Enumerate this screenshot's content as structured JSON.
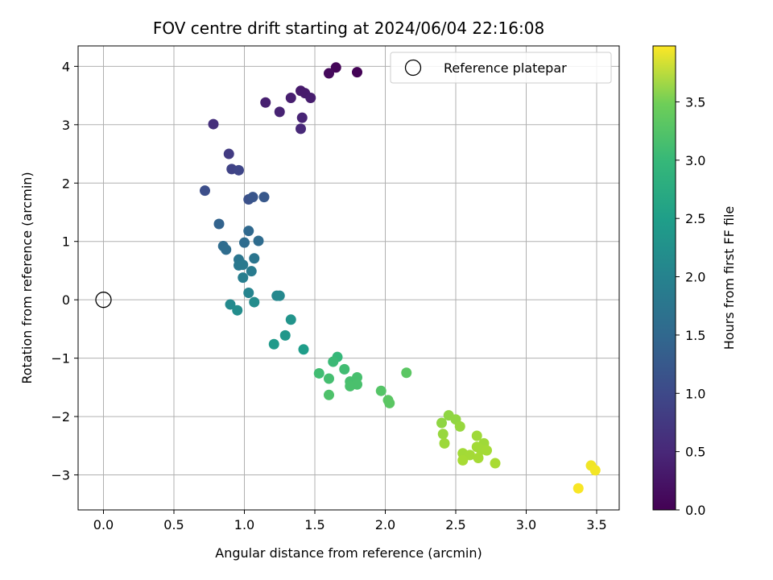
{
  "chart_data": {
    "type": "scatter",
    "title": "FOV centre drift starting at 2024/06/04 22:16:08",
    "xlabel": "Angular distance from reference (arcmin)",
    "ylabel": "Rotation from reference (arcmin)",
    "xlim": [
      -0.18,
      3.66
    ],
    "ylim": [
      -3.6,
      4.35
    ],
    "xticks": [
      0.0,
      0.5,
      1.0,
      1.5,
      2.0,
      2.5,
      3.0,
      3.5
    ],
    "yticks": [
      -3,
      -2,
      -1,
      0,
      1,
      2,
      3,
      4
    ],
    "xtick_labels": [
      "0.0",
      "0.5",
      "1.0",
      "1.5",
      "2.0",
      "2.5",
      "3.0",
      "3.5"
    ],
    "ytick_labels": [
      "−3",
      "−2",
      "−1",
      "0",
      "1",
      "2",
      "3",
      "4"
    ],
    "grid": true,
    "legend_position": "top-right",
    "legend": [
      {
        "label": "Reference platepar",
        "marker": "open-circle"
      }
    ],
    "reference_point": {
      "x": 0.0,
      "y": 0.0
    },
    "colorbar": {
      "label": "Hours from first FF file",
      "min": 0.0,
      "max": 3.98,
      "ticks": [
        0.0,
        0.5,
        1.0,
        1.5,
        2.0,
        2.5,
        3.0,
        3.5
      ],
      "tick_labels": [
        "0.0",
        "0.5",
        "1.0",
        "1.5",
        "2.0",
        "2.5",
        "3.0",
        "3.5"
      ],
      "colormap": "viridis"
    },
    "points": [
      {
        "x": 1.65,
        "y": 3.98,
        "t": 0.05
      },
      {
        "x": 1.6,
        "y": 3.88,
        "t": 0.1
      },
      {
        "x": 1.8,
        "y": 3.9,
        "t": 0.02
      },
      {
        "x": 1.4,
        "y": 3.58,
        "t": 0.28
      },
      {
        "x": 1.43,
        "y": 3.54,
        "t": 0.3
      },
      {
        "x": 1.47,
        "y": 3.46,
        "t": 0.32
      },
      {
        "x": 1.33,
        "y": 3.46,
        "t": 0.33
      },
      {
        "x": 1.15,
        "y": 3.38,
        "t": 0.35
      },
      {
        "x": 1.25,
        "y": 3.22,
        "t": 0.38
      },
      {
        "x": 1.41,
        "y": 3.12,
        "t": 0.4
      },
      {
        "x": 1.4,
        "y": 2.93,
        "t": 0.45
      },
      {
        "x": 0.78,
        "y": 3.01,
        "t": 0.55
      },
      {
        "x": 0.89,
        "y": 2.5,
        "t": 0.7
      },
      {
        "x": 0.91,
        "y": 2.24,
        "t": 0.8
      },
      {
        "x": 0.96,
        "y": 2.22,
        "t": 0.85
      },
      {
        "x": 0.72,
        "y": 1.87,
        "t": 0.95
      },
      {
        "x": 1.03,
        "y": 1.72,
        "t": 1.0
      },
      {
        "x": 1.06,
        "y": 1.76,
        "t": 1.05
      },
      {
        "x": 1.14,
        "y": 1.76,
        "t": 1.1
      },
      {
        "x": 0.82,
        "y": 1.3,
        "t": 1.25
      },
      {
        "x": 1.03,
        "y": 1.18,
        "t": 1.35
      },
      {
        "x": 0.85,
        "y": 0.92,
        "t": 1.4
      },
      {
        "x": 0.87,
        "y": 0.86,
        "t": 1.42
      },
      {
        "x": 1.0,
        "y": 0.98,
        "t": 1.4
      },
      {
        "x": 1.1,
        "y": 1.01,
        "t": 1.4
      },
      {
        "x": 0.96,
        "y": 0.69,
        "t": 1.55
      },
      {
        "x": 1.07,
        "y": 0.71,
        "t": 1.55
      },
      {
        "x": 0.96,
        "y": 0.59,
        "t": 1.6
      },
      {
        "x": 0.99,
        "y": 0.6,
        "t": 1.62
      },
      {
        "x": 1.05,
        "y": 0.49,
        "t": 1.65
      },
      {
        "x": 0.99,
        "y": 0.38,
        "t": 1.7
      },
      {
        "x": 1.03,
        "y": 0.12,
        "t": 1.8
      },
      {
        "x": 1.23,
        "y": 0.07,
        "t": 1.85
      },
      {
        "x": 1.25,
        "y": 0.07,
        "t": 1.86
      },
      {
        "x": 0.9,
        "y": -0.08,
        "t": 1.9
      },
      {
        "x": 1.07,
        "y": -0.04,
        "t": 1.92
      },
      {
        "x": 0.95,
        "y": -0.18,
        "t": 1.95
      },
      {
        "x": 1.33,
        "y": -0.34,
        "t": 2.05
      },
      {
        "x": 1.29,
        "y": -0.61,
        "t": 2.1
      },
      {
        "x": 1.21,
        "y": -0.76,
        "t": 2.15
      },
      {
        "x": 1.42,
        "y": -0.85,
        "t": 2.2
      },
      {
        "x": 1.66,
        "y": -0.98,
        "t": 2.65
      },
      {
        "x": 1.63,
        "y": -1.06,
        "t": 2.7
      },
      {
        "x": 1.71,
        "y": -1.19,
        "t": 2.75
      },
      {
        "x": 1.53,
        "y": -1.26,
        "t": 2.75
      },
      {
        "x": 1.6,
        "y": -1.35,
        "t": 2.78
      },
      {
        "x": 1.8,
        "y": -1.33,
        "t": 2.8
      },
      {
        "x": 1.75,
        "y": -1.4,
        "t": 2.8
      },
      {
        "x": 1.8,
        "y": -1.45,
        "t": 2.82
      },
      {
        "x": 1.75,
        "y": -1.48,
        "t": 2.82
      },
      {
        "x": 2.15,
        "y": -1.25,
        "t": 2.95
      },
      {
        "x": 1.97,
        "y": -1.56,
        "t": 2.9
      },
      {
        "x": 1.6,
        "y": -1.63,
        "t": 2.85
      },
      {
        "x": 2.02,
        "y": -1.72,
        "t": 2.95
      },
      {
        "x": 2.03,
        "y": -1.77,
        "t": 2.95
      },
      {
        "x": 2.45,
        "y": -1.98,
        "t": 3.3
      },
      {
        "x": 2.5,
        "y": -2.05,
        "t": 3.32
      },
      {
        "x": 2.4,
        "y": -2.11,
        "t": 3.3
      },
      {
        "x": 2.53,
        "y": -2.17,
        "t": 3.35
      },
      {
        "x": 2.41,
        "y": -2.3,
        "t": 3.35
      },
      {
        "x": 2.65,
        "y": -2.33,
        "t": 3.4
      },
      {
        "x": 2.42,
        "y": -2.46,
        "t": 3.38
      },
      {
        "x": 2.7,
        "y": -2.46,
        "t": 3.4
      },
      {
        "x": 2.65,
        "y": -2.52,
        "t": 3.42
      },
      {
        "x": 2.68,
        "y": -2.57,
        "t": 3.42
      },
      {
        "x": 2.72,
        "y": -2.58,
        "t": 3.43
      },
      {
        "x": 2.55,
        "y": -2.63,
        "t": 3.42
      },
      {
        "x": 2.6,
        "y": -2.66,
        "t": 3.43
      },
      {
        "x": 2.66,
        "y": -2.71,
        "t": 3.44
      },
      {
        "x": 2.55,
        "y": -2.75,
        "t": 3.45
      },
      {
        "x": 2.78,
        "y": -2.8,
        "t": 3.46
      },
      {
        "x": 3.46,
        "y": -2.84,
        "t": 3.9
      },
      {
        "x": 3.49,
        "y": -2.92,
        "t": 3.92
      },
      {
        "x": 3.37,
        "y": -3.23,
        "t": 3.95
      }
    ]
  }
}
